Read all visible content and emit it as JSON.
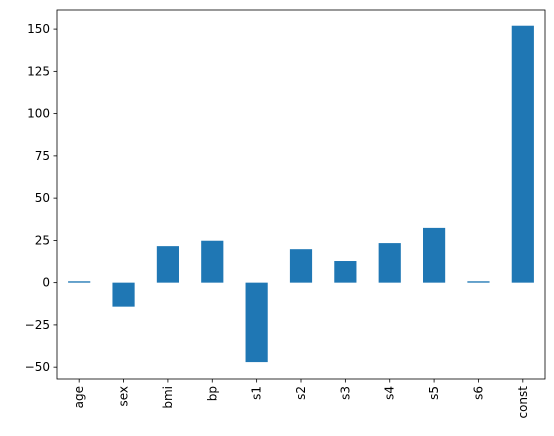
{
  "chart_data": {
    "type": "bar",
    "title": "",
    "xlabel": "",
    "ylabel": "",
    "categories": [
      "age",
      "sex",
      "bmi",
      "bp",
      "s1",
      "s2",
      "s3",
      "s4",
      "s5",
      "s6",
      "const"
    ],
    "values": [
      0.8,
      -14.2,
      21.6,
      24.8,
      -47.0,
      19.8,
      12.8,
      23.4,
      32.4,
      0.8,
      152.0
    ],
    "ylim": [
      -57.0,
      161.3
    ],
    "yticks": [
      -50,
      -25,
      0,
      25,
      50,
      75,
      100,
      125,
      150
    ],
    "grid": false,
    "legend": "none",
    "bar_color": "#1f77b4",
    "xtick_rotation": 90
  }
}
